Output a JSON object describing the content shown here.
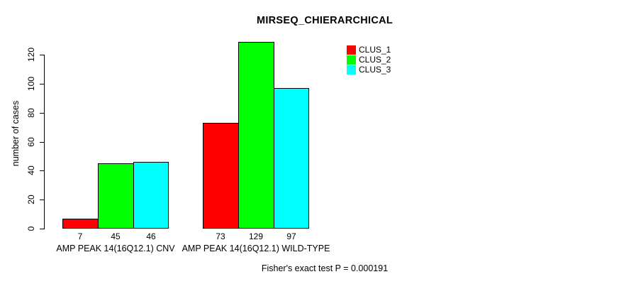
{
  "chart_data": {
    "type": "bar",
    "title": "MIRSEQ_CHIERARCHICAL",
    "xlabel": "",
    "ylabel": "number of cases",
    "ylim": [
      0,
      129
    ],
    "y_ticks": [
      0,
      20,
      40,
      60,
      80,
      100,
      120
    ],
    "grid": false,
    "legend_position": "top-right-inside",
    "categories": [
      "AMP PEAK 14(16Q12.1) CNV",
      "AMP PEAK 14(16Q12.1) WILD-TYPE"
    ],
    "series": [
      {
        "name": "CLUS_1",
        "color": "#ff0000",
        "values": [
          7,
          73
        ]
      },
      {
        "name": "CLUS_2",
        "color": "#00ff00",
        "values": [
          45,
          129
        ]
      },
      {
        "name": "CLUS_3",
        "color": "#00ffff",
        "values": [
          46,
          97
        ]
      }
    ],
    "bar_value_labels": [
      [
        "7",
        "45",
        "46"
      ],
      [
        "73",
        "129",
        "97"
      ]
    ],
    "annotation": "Fisher's exact test P = 0.000191"
  }
}
